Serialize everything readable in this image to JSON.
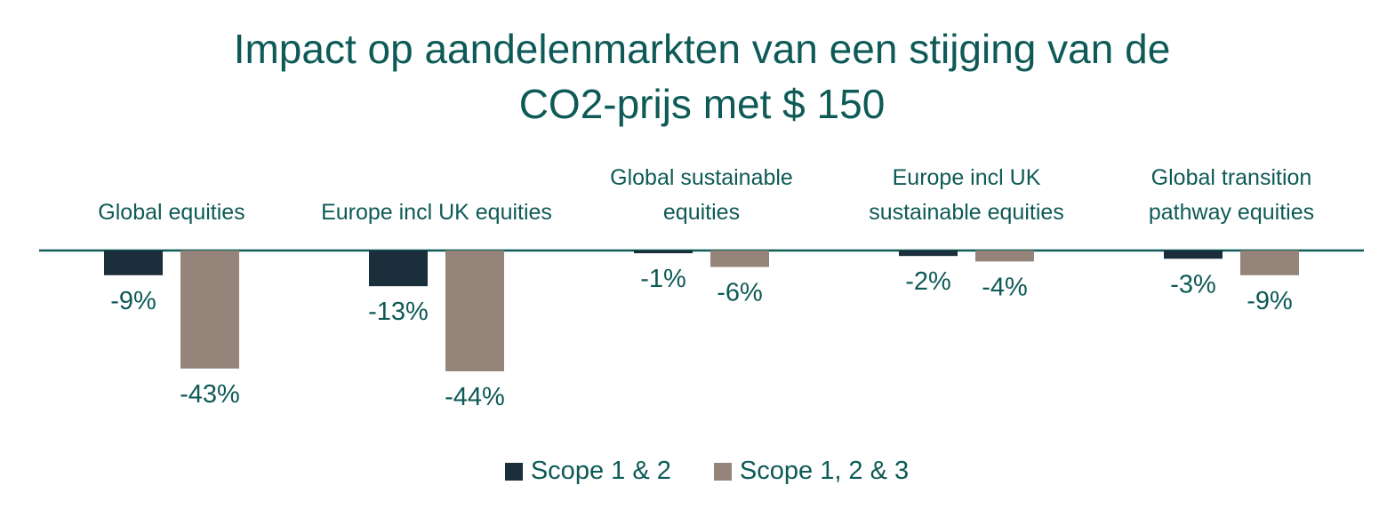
{
  "title": {
    "line1": "Impact op aandelenmarkten van een stijging van de",
    "line2": "CO2-prijs met $ 150"
  },
  "colors": {
    "title": "#0e5a56",
    "axis": "#0e5a56",
    "category_label": "#0e5a56",
    "value_label": "#0e5a56",
    "scope12": "#1b2e3c",
    "scope123": "#958479"
  },
  "chart_data": {
    "type": "bar",
    "title": "Impact op aandelenmarkten van een stijging van de CO2-prijs met $ 150",
    "xlabel": "",
    "ylabel": "",
    "categories": [
      [
        "Global equities"
      ],
      [
        "Europe incl UK equities"
      ],
      [
        "Global sustainable",
        "equities"
      ],
      [
        "Europe incl UK",
        "sustainable equities"
      ],
      [
        "Global transition",
        "pathway equities"
      ]
    ],
    "series": [
      {
        "name": "Scope 1 & 2",
        "values": [
          -9,
          -13,
          -1,
          -2,
          -3
        ],
        "labels": [
          "-9%",
          "-13%",
          "-1%",
          "-2%",
          "-3%"
        ]
      },
      {
        "name": "Scope 1, 2 & 3",
        "values": [
          -43,
          -44,
          -6,
          -4,
          -9
        ],
        "labels": [
          "-43%",
          "-44%",
          "-6%",
          "-4%",
          "-9%"
        ]
      }
    ],
    "ylim": [
      -50,
      0
    ],
    "unit": "%",
    "grid": false,
    "legend_position": "bottom"
  },
  "legend": [
    {
      "label": "Scope 1 & 2"
    },
    {
      "label": "Scope 1, 2 & 3"
    }
  ]
}
